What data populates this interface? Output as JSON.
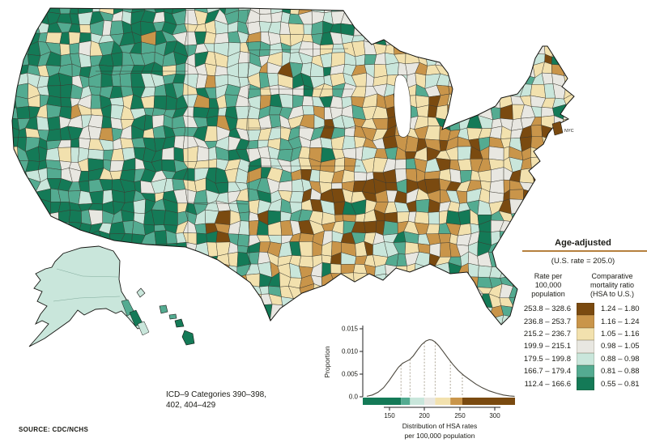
{
  "map": {
    "description": "U.S. choropleth map of age-adjusted heart disease death rates by health service area (HSA)",
    "palette": {
      "dark_brown": "#7A4A10",
      "golden_brown": "#C9954A",
      "pale_tan": "#F2E1AE",
      "pale_gray": "#E8E7E1",
      "pale_mint": "#C9E6DB",
      "teal": "#54AB91",
      "dark_green": "#147A57",
      "water_white": "#FFFFFF",
      "cell_border": "#3A382E",
      "outline": "#141410"
    }
  },
  "legend": {
    "title": "Age-adjusted",
    "rule_color": "#B5803E",
    "us_rate_note": "(U.S. rate = 205.0)",
    "left_header": "Rate per\n100,000\npopulation",
    "right_header": "Comparative\nmortality ratio\n(HSA to U.S.)",
    "rows": [
      {
        "rate": "253.8 – 328.6",
        "ratio": "1.24 – 1.80",
        "color": "#7A4A10"
      },
      {
        "rate": "236.8 – 253.7",
        "ratio": "1.16 – 1.24",
        "color": "#C9954A"
      },
      {
        "rate": "215.2 – 236.7",
        "ratio": "1.05 – 1.16",
        "color": "#F2E1AE"
      },
      {
        "rate": "199.9 – 215.1",
        "ratio": "0.98 – 1.05",
        "color": "#E8E7E1"
      },
      {
        "rate": "179.5 – 199.8",
        "ratio": "0.88 – 0.98",
        "color": "#C9E6DB"
      },
      {
        "rate": "166.7 – 179.4",
        "ratio": "0.81 – 0.88",
        "color": "#54AB91"
      },
      {
        "rate": "112.4 – 166.6",
        "ratio": "0.55 – 0.81",
        "color": "#147A57"
      }
    ]
  },
  "annotations": {
    "icd_note": "ICD–9 Categories 390–398,\n402, 404–429",
    "source": "SOURCE: CDC/NCHS",
    "nyc_label": "NYC"
  },
  "chart_data": {
    "type": "area",
    "title": "",
    "xlabel_lines": [
      "Distribution of HSA rates",
      "per 100,000 population"
    ],
    "ylabel": "Proportion",
    "x_ticks": [
      150,
      200,
      250,
      300
    ],
    "y_ticks": [
      0,
      0.005,
      0.01,
      0.015
    ],
    "y_tick_labels": [
      "0.0",
      "0.005",
      "0.010",
      "0.015"
    ],
    "xlim": [
      112.4,
      328.6
    ],
    "ylim": [
      0,
      0.015
    ],
    "grid": false,
    "breakpoints": [
      166.7,
      179.5,
      199.9,
      215.2,
      236.8,
      253.8
    ],
    "band_colors": [
      "#147A57",
      "#54AB91",
      "#C9E6DB",
      "#E8E7E1",
      "#F2E1AE",
      "#C9954A",
      "#7A4A10"
    ],
    "x": [
      118,
      126,
      134,
      142,
      150,
      157,
      163,
      169,
      174,
      179,
      184,
      190,
      196,
      202,
      207,
      211,
      215,
      220,
      226,
      233,
      240,
      248,
      256,
      264,
      273,
      282,
      292,
      302,
      312,
      321,
      328
    ],
    "density": [
      0.0001,
      0.0004,
      0.001,
      0.002,
      0.0036,
      0.0052,
      0.0065,
      0.0074,
      0.0078,
      0.0082,
      0.009,
      0.0103,
      0.0115,
      0.0123,
      0.0126,
      0.0125,
      0.0121,
      0.0113,
      0.0101,
      0.0086,
      0.0072,
      0.0058,
      0.0047,
      0.0038,
      0.0028,
      0.002,
      0.0013,
      0.0008,
      0.0004,
      0.0002,
      0.0001
    ]
  }
}
